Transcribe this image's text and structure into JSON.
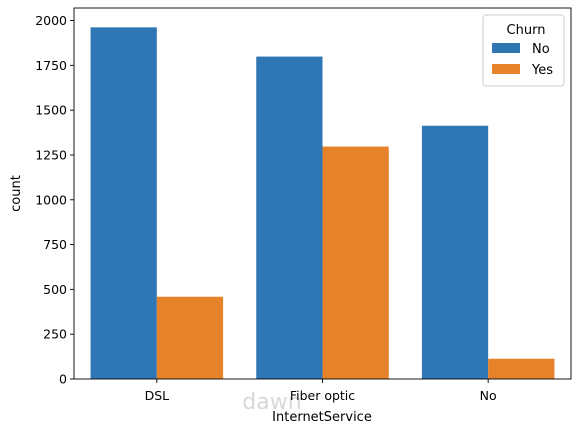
{
  "chart_data": {
    "type": "bar",
    "xlabel": "InternetService",
    "ylabel": "count",
    "categories": [
      "DSL",
      "Fiber optic",
      "No"
    ],
    "series": [
      {
        "name": "No",
        "values": [
          1962,
          1799,
          1413
        ],
        "color": "#2f77b4"
      },
      {
        "name": "Yes",
        "values": [
          459,
          1297,
          113
        ],
        "color": "#e6822a"
      }
    ],
    "ylim": [
      0,
      2070
    ],
    "yticks": [
      0,
      250,
      500,
      750,
      1000,
      1250,
      1500,
      1750,
      2000
    ],
    "legend": {
      "title": "Churn",
      "placement": "top-right"
    },
    "grid": false
  },
  "watermark": {
    "text": "dawn"
  }
}
